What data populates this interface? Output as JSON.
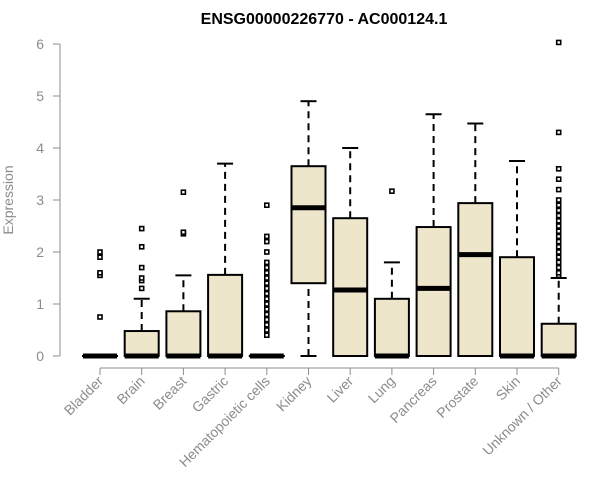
{
  "chart_data": {
    "type": "boxplot",
    "title": "ENSG00000226770 - AC000124.1",
    "xlabel": "",
    "ylabel": "Expression",
    "ylim": [
      0,
      6
    ],
    "yticks": [
      "0",
      "1",
      "2",
      "3",
      "4",
      "5",
      "6"
    ],
    "colors": {
      "box_fill": "#ede6cb",
      "box_stroke": "#000000",
      "axis": "#8c8c8c"
    },
    "categories": [
      "Bladder",
      "Brain",
      "Breast",
      "Gastric",
      "Hematopoietic cells",
      "Kidney",
      "Liver",
      "Lung",
      "Pancreas",
      "Prostate",
      "Skin",
      "Unknown / Other"
    ],
    "boxes": [
      {
        "min": 0,
        "q1": 0,
        "median": 0,
        "q3": 0,
        "max": 0,
        "outliers": [
          0.75,
          1.55,
          1.6,
          1.9,
          2.0
        ]
      },
      {
        "min": 0,
        "q1": 0,
        "median": 0,
        "q3": 0.48,
        "max": 1.1,
        "outliers": [
          1.3,
          1.45,
          1.5,
          1.7,
          2.1,
          2.45
        ]
      },
      {
        "min": 0,
        "q1": 0,
        "median": 0,
        "q3": 0.86,
        "max": 1.55,
        "outliers": [
          2.35,
          2.38,
          3.15
        ]
      },
      {
        "min": 0,
        "q1": 0,
        "median": 0,
        "q3": 1.56,
        "max": 3.7,
        "outliers": []
      },
      {
        "min": 0,
        "q1": 0,
        "median": 0,
        "q3": 0,
        "max": 0,
        "outliers": [
          0.4,
          0.5,
          0.6,
          0.7,
          0.8,
          0.9,
          1.0,
          1.1,
          1.2,
          1.3,
          1.4,
          1.5,
          1.6,
          1.7,
          1.8,
          2.0,
          2.2,
          2.3,
          2.9
        ]
      },
      {
        "min": 0,
        "q1": 1.4,
        "median": 2.85,
        "q3": 3.65,
        "max": 4.9,
        "outliers": []
      },
      {
        "min": 0,
        "q1": 0,
        "median": 1.27,
        "q3": 2.65,
        "max": 4.0,
        "outliers": []
      },
      {
        "min": 0,
        "q1": 0,
        "median": 0,
        "q3": 1.1,
        "max": 1.8,
        "outliers": [
          3.17
        ]
      },
      {
        "min": 0,
        "q1": 0,
        "median": 1.3,
        "q3": 2.48,
        "max": 4.65,
        "outliers": []
      },
      {
        "min": 0,
        "q1": 0,
        "median": 1.95,
        "q3": 2.94,
        "max": 4.47,
        "outliers": []
      },
      {
        "min": 0,
        "q1": 0,
        "median": 0,
        "q3": 1.9,
        "max": 3.75,
        "outliers": []
      },
      {
        "min": 0,
        "q1": 0,
        "median": 0,
        "q3": 0.62,
        "max": 1.5,
        "outliers": [
          1.55,
          1.6,
          1.7,
          1.8,
          1.9,
          2.0,
          2.1,
          2.2,
          2.3,
          2.4,
          2.5,
          2.6,
          2.7,
          2.8,
          2.9,
          3.0,
          3.2,
          3.4,
          3.6,
          4.3,
          6.03
        ]
      }
    ]
  }
}
